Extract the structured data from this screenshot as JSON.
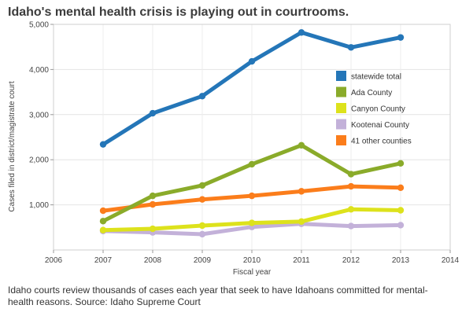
{
  "title": "Idaho's mental health crisis is playing out in courtrooms.",
  "caption": "Idaho courts review thousands of cases each year that seek to have Idahoans committed for mental-health reasons. Source: Idaho Supreme Court",
  "chart_data": {
    "type": "line",
    "title": "Idaho's mental health crisis is playing out in courtrooms.",
    "xlabel": "Fiscal year",
    "ylabel": "Cases filed in district/magistrate court",
    "xlim": [
      2006,
      2014
    ],
    "ylim": [
      0,
      5000
    ],
    "x_ticks": [
      2006,
      2007,
      2008,
      2009,
      2010,
      2011,
      2012,
      2013,
      2014
    ],
    "y_ticks": [
      1000,
      2000,
      3000,
      4000,
      5000
    ],
    "y_tick_labels": [
      "1,000",
      "2,000",
      "3,000",
      "4,000",
      "5,000"
    ],
    "grid": true,
    "legend_position": "right",
    "x": [
      2007,
      2008,
      2009,
      2010,
      2011,
      2012,
      2013
    ],
    "series": [
      {
        "name": "statewide total",
        "color": "#2476b8",
        "values": [
          2340,
          3030,
          3410,
          4180,
          4820,
          4490,
          4710
        ]
      },
      {
        "name": "Ada County",
        "color": "#8aab2a",
        "values": [
          640,
          1200,
          1430,
          1900,
          2320,
          1680,
          1920
        ]
      },
      {
        "name": "Canyon County",
        "color": "#dde21c",
        "values": [
          440,
          470,
          540,
          600,
          630,
          900,
          880
        ]
      },
      {
        "name": "Kootenai County",
        "color": "#c3b1d9",
        "values": [
          420,
          390,
          350,
          510,
          580,
          530,
          550
        ]
      },
      {
        "name": "41 other counties",
        "color": "#fb7d1b",
        "values": [
          870,
          1010,
          1120,
          1200,
          1300,
          1410,
          1380
        ]
      }
    ]
  }
}
